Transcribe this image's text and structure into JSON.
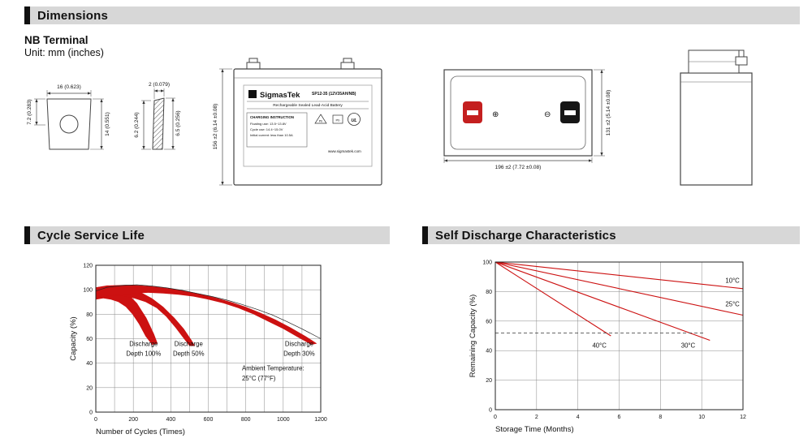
{
  "sections": {
    "dimensions": {
      "title": "Dimensions"
    },
    "cycle_life": {
      "title": "Cycle Service Life"
    },
    "self_discharge": {
      "title": "Self Discharge Characteristics"
    }
  },
  "header": {
    "subtitle": "NB Terminal",
    "unit_note": "Unit: mm (inches)"
  },
  "drawings": {
    "terminal_front": {
      "top_dim": "16 (0.623)",
      "left_dim": "7.2 (0.283)",
      "right_dim": "14 (0.551)"
    },
    "terminal_side": {
      "top_dim": "2 (0.079)",
      "left_dim": "6.2 (0.244)",
      "right_dim": "6.5 (0.256)"
    },
    "front_view": {
      "height_dim": "156 ±2 (6.14 ±0.08)"
    },
    "top_view": {
      "width_dim": "196 ±2 (7.72 ±0.08)",
      "depth_dim": "131 ±2 (5.14 ±0.08)",
      "positive_symbol": "⊕",
      "negative_symbol": "⊖"
    }
  },
  "battery_label": {
    "logo_letter": "S",
    "brand": "SigmasTek",
    "model": "SP12-35 (12V35AH/NB)",
    "subtitle": "Rechargeable Sealed Lead-Acid Battery",
    "charging_title": "CHARGING INSTRUCTION",
    "charging_line1": "Floating use: 13.5~13.8V",
    "charging_line2": "Cycle use: 14.4~15.0V",
    "charging_line3": "Initial current: less than 10.5A",
    "pb": "Pb",
    "ul": "UL",
    "website": "www.sigmastek.com"
  },
  "colors": {
    "section_bar_gray": "#d7d7d7",
    "accent_black": "#111111",
    "curve_red": "#cc1111",
    "terminal_positive_red": "#c41f1f",
    "terminal_negative_black": "#161616"
  },
  "chart_data": [
    {
      "type": "area",
      "title": "Cycle Service Life",
      "xlabel": "Number of Cycles (Times)",
      "ylabel": "Capacity (%)",
      "xlim": [
        0,
        1200
      ],
      "ylim": [
        0,
        120
      ],
      "xticks": [
        0,
        200,
        400,
        600,
        800,
        1000,
        1200
      ],
      "yticks": [
        0,
        20,
        40,
        60,
        80,
        100,
        120
      ],
      "x_grid_step": 100,
      "y_grid_step": 20,
      "grid": true,
      "band_color": "#cc1111",
      "bands": [
        {
          "name": "Discharge Depth 100%",
          "polygon": [
            [
              0,
              102
            ],
            [
              60,
              103
            ],
            [
              120,
              102
            ],
            [
              170,
              97
            ],
            [
              220,
              89
            ],
            [
              270,
              77
            ],
            [
              310,
              64
            ],
            [
              330,
              56
            ],
            [
              300,
              55
            ],
            [
              265,
              62
            ],
            [
              230,
              72
            ],
            [
              195,
              80
            ],
            [
              160,
              86
            ],
            [
              120,
              90
            ],
            [
              80,
              92
            ],
            [
              40,
              93
            ],
            [
              0,
              92
            ]
          ]
        },
        {
          "name": "Discharge Depth 50%",
          "polygon": [
            [
              0,
              102
            ],
            [
              60,
              103.5
            ],
            [
              120,
              103.5
            ],
            [
              180,
              102
            ],
            [
              240,
              98
            ],
            [
              300,
              93
            ],
            [
              360,
              86
            ],
            [
              420,
              77
            ],
            [
              470,
              68
            ],
            [
              510,
              59
            ],
            [
              530,
              54
            ],
            [
              500,
              54
            ],
            [
              465,
              61
            ],
            [
              425,
              69
            ],
            [
              375,
              78
            ],
            [
              325,
              85
            ],
            [
              265,
              90
            ],
            [
              205,
              93
            ],
            [
              145,
              95
            ],
            [
              85,
              95
            ],
            [
              40,
              94
            ],
            [
              0,
              93
            ]
          ]
        },
        {
          "name": "Discharge Depth 30%",
          "polygon": [
            [
              0,
              102
            ],
            [
              80,
              103.5
            ],
            [
              160,
              104
            ],
            [
              240,
              103.5
            ],
            [
              320,
              102.5
            ],
            [
              400,
              101
            ],
            [
              480,
              99
            ],
            [
              560,
              96.5
            ],
            [
              640,
              93.5
            ],
            [
              720,
              90
            ],
            [
              800,
              86
            ],
            [
              880,
              81
            ],
            [
              960,
              75.5
            ],
            [
              1040,
              69
            ],
            [
              1120,
              62
            ],
            [
              1180,
              56
            ],
            [
              1150,
              55
            ],
            [
              1080,
              61
            ],
            [
              1000,
              68
            ],
            [
              920,
              74
            ],
            [
              840,
              80
            ],
            [
              760,
              85
            ],
            [
              680,
              89
            ],
            [
              600,
              92
            ],
            [
              520,
              94.5
            ],
            [
              440,
              96
            ],
            [
              360,
              97
            ],
            [
              280,
              97.5
            ],
            [
              200,
              97
            ],
            [
              120,
              96
            ],
            [
              60,
              95
            ],
            [
              0,
              94
            ]
          ]
        }
      ],
      "lines": [
        {
          "name": "envelope",
          "color": "#222222",
          "width": 0.7,
          "points": [
            [
              0,
              99
            ],
            [
              60,
              102
            ],
            [
              140,
              103.5
            ],
            [
              220,
              104
            ],
            [
              300,
              103
            ],
            [
              380,
              101.5
            ],
            [
              460,
              99.5
            ],
            [
              540,
              97
            ],
            [
              620,
              94.5
            ],
            [
              700,
              91.5
            ],
            [
              780,
              88
            ],
            [
              860,
              84
            ],
            [
              940,
              79.5
            ],
            [
              1020,
              74
            ],
            [
              1100,
              68
            ],
            [
              1200,
              60
            ]
          ]
        }
      ],
      "annotations": [
        {
          "text": "Discharge",
          "x": 255,
          "y": 54,
          "anchor": "middle"
        },
        {
          "text": "Depth 100%",
          "x": 255,
          "y": 46,
          "anchor": "middle"
        },
        {
          "text": "Discharge",
          "x": 495,
          "y": 54,
          "anchor": "middle"
        },
        {
          "text": "Depth 50%",
          "x": 495,
          "y": 46,
          "anchor": "middle"
        },
        {
          "text": "Discharge",
          "x": 1085,
          "y": 54,
          "anchor": "middle"
        },
        {
          "text": "Depth 30%",
          "x": 1085,
          "y": 46,
          "anchor": "middle"
        },
        {
          "text": "Ambient Temperature:",
          "x": 780,
          "y": 34,
          "anchor": "start"
        },
        {
          "text": "25°C (77°F)",
          "x": 780,
          "y": 26,
          "anchor": "start"
        }
      ],
      "legend": "none"
    },
    {
      "type": "line",
      "title": "Self Discharge Characteristics",
      "xlabel": "Storage Time (Months)",
      "ylabel": "Remaining Capacity (%)",
      "xlim": [
        0,
        12
      ],
      "ylim": [
        0,
        100
      ],
      "xticks": [
        0,
        2,
        4,
        6,
        8,
        10,
        12
      ],
      "yticks": [
        0,
        20,
        40,
        60,
        80,
        100
      ],
      "x_grid_step": 2,
      "y_grid_step": 20,
      "grid": true,
      "lines": [
        {
          "name": "10°C",
          "color": "#cc1111",
          "width": 1.1,
          "points": [
            [
              0,
              100
            ],
            [
              12,
              82
            ]
          ]
        },
        {
          "name": "25°C",
          "color": "#cc1111",
          "width": 1.1,
          "points": [
            [
              0,
              100
            ],
            [
              12,
              64
            ]
          ]
        },
        {
          "name": "30°C",
          "color": "#cc1111",
          "width": 1.1,
          "points": [
            [
              0,
              100
            ],
            [
              10.4,
              47
            ]
          ]
        },
        {
          "name": "40°C",
          "color": "#cc1111",
          "width": 1.1,
          "points": [
            [
              0,
              100
            ],
            [
              5.6,
              50
            ]
          ]
        },
        {
          "name": "threshold",
          "color": "#333333",
          "width": 0.8,
          "dash": "4,3",
          "points": [
            [
              0,
              52
            ],
            [
              10.1,
              52
            ]
          ]
        }
      ],
      "annotations": [
        {
          "text": "10°C",
          "x": 11.15,
          "y": 86,
          "anchor": "start"
        },
        {
          "text": "25°C",
          "x": 11.15,
          "y": 70,
          "anchor": "start"
        },
        {
          "text": "30°C",
          "x": 9.0,
          "y": 42,
          "anchor": "start"
        },
        {
          "text": "40°C",
          "x": 4.7,
          "y": 42,
          "anchor": "start"
        }
      ],
      "legend": "none"
    }
  ]
}
